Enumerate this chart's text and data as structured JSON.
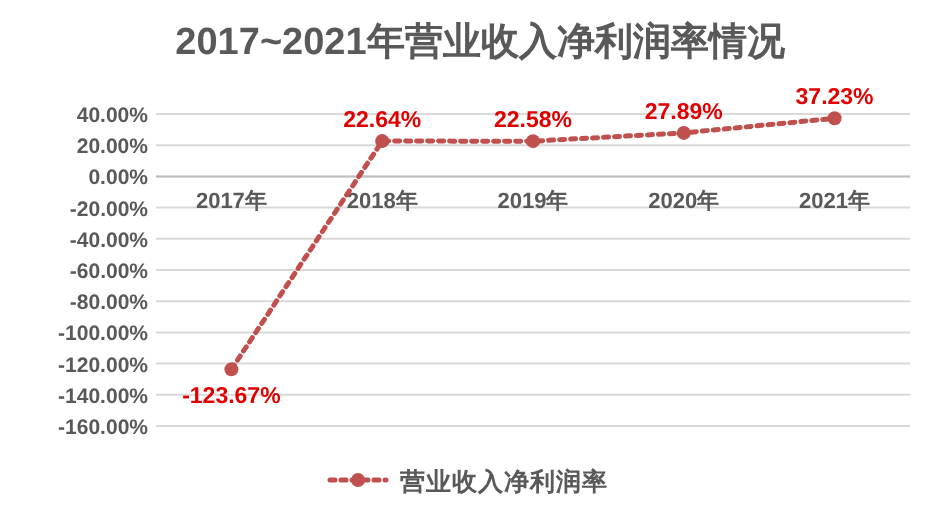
{
  "chart_data": {
    "type": "line",
    "title": "2017~2021年营业收入净利润率情况",
    "categories": [
      "2017年",
      "2018年",
      "2019年",
      "2020年",
      "2021年"
    ],
    "series": [
      {
        "name": "营业收入净利润率",
        "color": "#c0504d",
        "values": [
          -123.67,
          22.64,
          22.58,
          27.89,
          37.23
        ],
        "value_labels": [
          "-123.67%",
          "22.64%",
          "22.58%",
          "27.89%",
          "37.23%"
        ]
      }
    ],
    "ylim": [
      -160,
      40
    ],
    "yticks": [
      {
        "value": 40,
        "label": "40.00%"
      },
      {
        "value": 20,
        "label": "20.00%"
      },
      {
        "value": 0,
        "label": "0.00%"
      },
      {
        "value": -20,
        "label": "-20.00%"
      },
      {
        "value": -40,
        "label": "-40.00%"
      },
      {
        "value": -60,
        "label": "-60.00%"
      },
      {
        "value": -80,
        "label": "-80.00%"
      },
      {
        "value": -100,
        "label": "-100.00%"
      },
      {
        "value": -120,
        "label": "-120.00%"
      },
      {
        "value": -140,
        "label": "-140.00%"
      },
      {
        "value": -160,
        "label": "-160.00%"
      }
    ],
    "grid": "y",
    "legend": "bottom",
    "marker": "circle",
    "line_style": "dotted"
  }
}
